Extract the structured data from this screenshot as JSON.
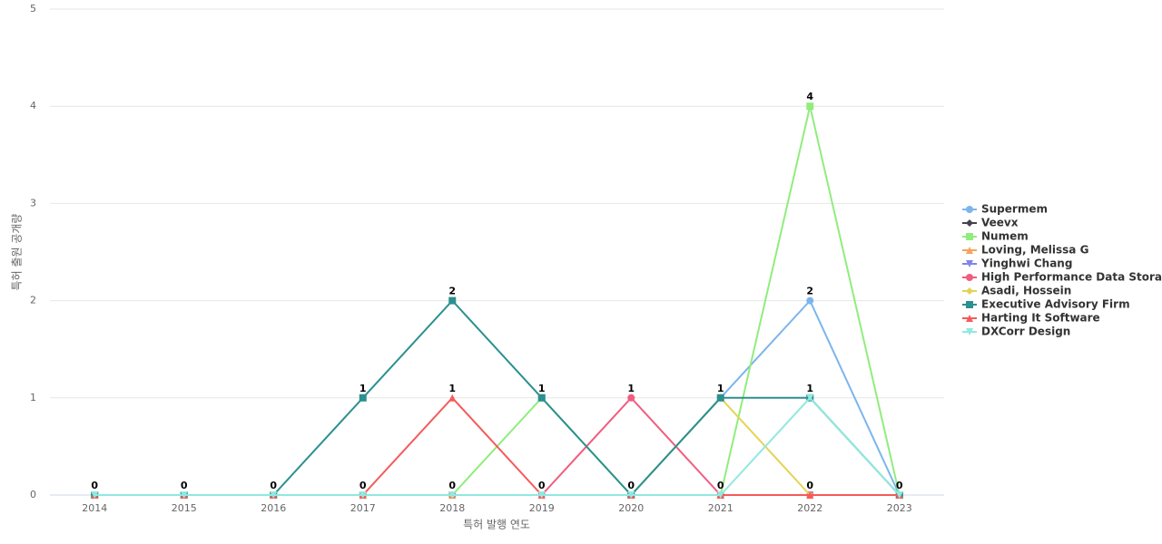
{
  "chart_data": {
    "type": "line",
    "x_label": "특허 발행 연도",
    "y_label": "특허 출원 공개량",
    "categories": [
      "2014",
      "2015",
      "2016",
      "2017",
      "2018",
      "2019",
      "2020",
      "2021",
      "2022",
      "2023"
    ],
    "ylim": [
      0,
      5
    ],
    "yticks": [
      0,
      1,
      2,
      3,
      4,
      5
    ],
    "grid": true,
    "legend": "right",
    "series": [
      {
        "name": "Supermem",
        "color": "#7cb5ec",
        "marker": "circle",
        "values": [
          0,
          0,
          0,
          0,
          0,
          0,
          0,
          1,
          2,
          0
        ]
      },
      {
        "name": "Veevx",
        "color": "#434348",
        "marker": "diamond",
        "values": [
          0,
          0,
          0,
          0,
          0,
          0,
          0,
          0,
          0,
          0
        ]
      },
      {
        "name": "Numem",
        "color": "#90ed7d",
        "marker": "square",
        "values": [
          0,
          0,
          0,
          0,
          0,
          1,
          0,
          0,
          4,
          0
        ]
      },
      {
        "name": "Loving, Melissa G",
        "color": "#f7a35c",
        "marker": "triangle",
        "values": [
          0,
          0,
          0,
          0,
          0,
          0,
          0,
          0,
          0,
          0
        ]
      },
      {
        "name": "Yinghwi Chang",
        "color": "#8085e9",
        "marker": "triangle-down",
        "values": [
          0,
          0,
          0,
          0,
          0,
          0,
          0,
          0,
          0,
          0
        ]
      },
      {
        "name": "High Performance Data Storage",
        "color": "#f15c80",
        "marker": "circle",
        "values": [
          0,
          0,
          0,
          0,
          0,
          0,
          1,
          0,
          0,
          0
        ]
      },
      {
        "name": "Asadi, Hossein",
        "color": "#e4d354",
        "marker": "diamond",
        "values": [
          0,
          0,
          0,
          0,
          0,
          0,
          0,
          1,
          0,
          0
        ]
      },
      {
        "name": "Executive Advisory Firm",
        "color": "#2b908f",
        "marker": "square",
        "values": [
          0,
          0,
          0,
          1,
          2,
          1,
          0,
          1,
          1,
          0
        ]
      },
      {
        "name": "Harting It Software",
        "color": "#f45b5b",
        "marker": "triangle",
        "values": [
          0,
          0,
          0,
          0,
          1,
          0,
          0,
          0,
          0,
          0
        ]
      },
      {
        "name": "DXCorr Design",
        "color": "#91e8e1",
        "marker": "triangle-down",
        "values": [
          0,
          0,
          0,
          0,
          0,
          0,
          0,
          0,
          1,
          0
        ]
      }
    ]
  }
}
